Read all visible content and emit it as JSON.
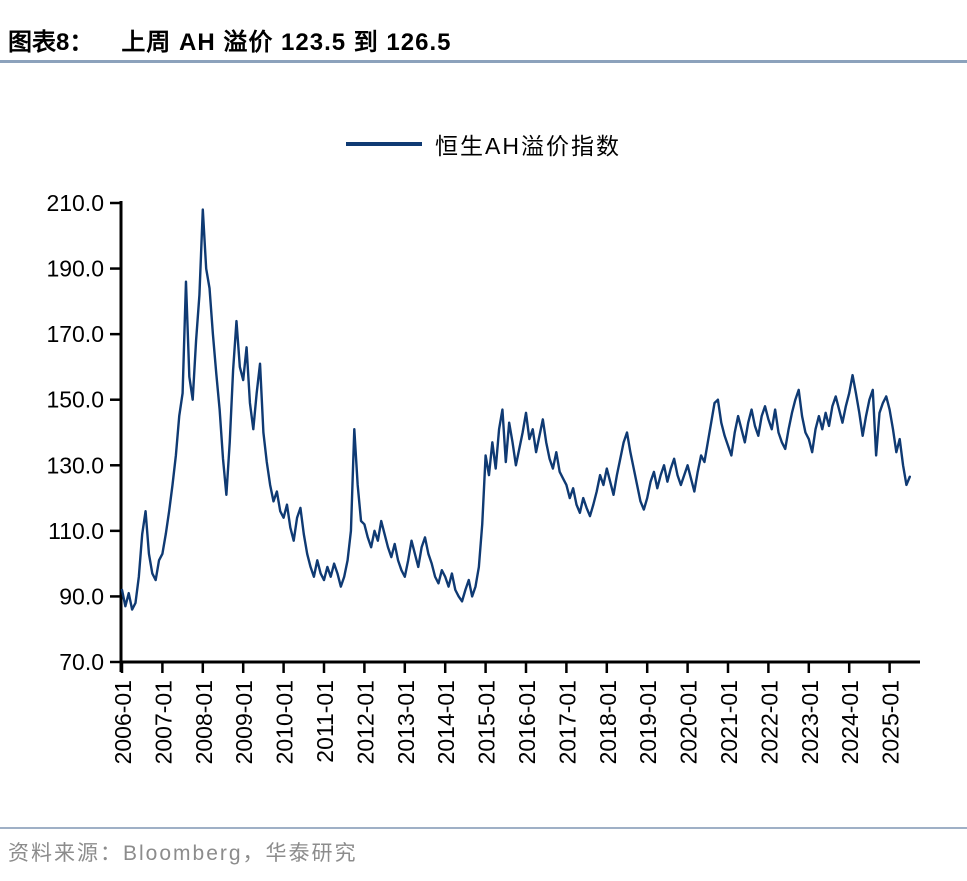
{
  "header": {
    "chart_label": "图表8：",
    "title": "上周 AH 溢价 123.5 到 126.5"
  },
  "legend": {
    "label": "恒生AH溢价指数"
  },
  "footer": {
    "source": "资料来源：Bloomberg，华泰研究"
  },
  "colors": {
    "line": "#0F3A73",
    "title_divider": "#8CA2BC",
    "footer_divider": "#9FB0C6",
    "source_text": "#8C8C8C",
    "axis": "#000000",
    "title_text": "#000000"
  },
  "chart_data": {
    "type": "line",
    "title": "上周 AH 溢价 123.5 到 126.5",
    "xlabel": "",
    "ylabel": "",
    "ylim": [
      70,
      210
    ],
    "grid": false,
    "legend_position": "top-center",
    "y_ticks": [
      70,
      90,
      110,
      130,
      150,
      170,
      190,
      210
    ],
    "y_tick_labels": [
      "70.0",
      "90.0",
      "110.0",
      "130.0",
      "150.0",
      "170.0",
      "190.0",
      "210.0"
    ],
    "x_tick_labels": [
      "2006-01",
      "2007-01",
      "2008-01",
      "2009-01",
      "2010-01",
      "2011-01",
      "2012-01",
      "2013-01",
      "2014-01",
      "2015-01",
      "2016-01",
      "2017-01",
      "2018-01",
      "2019-01",
      "2020-01",
      "2021-01",
      "2022-01",
      "2023-01",
      "2024-01",
      "2025-01"
    ],
    "series": [
      {
        "name": "恒生AH溢价指数",
        "start": "2006-01",
        "frequency": "monthly",
        "values": [
          92,
          87,
          91,
          86,
          88,
          96,
          109,
          116,
          103,
          97,
          95,
          101,
          103,
          109,
          116,
          124,
          133,
          145,
          152,
          186,
          157,
          150,
          168,
          182,
          208,
          190,
          184,
          170,
          158,
          147,
          132,
          121,
          137,
          159,
          174,
          160,
          156,
          166,
          149,
          141,
          152,
          161,
          140,
          131,
          124,
          119,
          122,
          116,
          114,
          118,
          111,
          107,
          114,
          117,
          109,
          103,
          99,
          96,
          101,
          97,
          95,
          99,
          96,
          100,
          97,
          93,
          96,
          101,
          110,
          141,
          124,
          113,
          112,
          108,
          105,
          110,
          107,
          113,
          109,
          105,
          102,
          106,
          101,
          98,
          96,
          101,
          107,
          103,
          99,
          105,
          108,
          103,
          100,
          96,
          94,
          98,
          96,
          93,
          97,
          92,
          90,
          88.5,
          92,
          95,
          90,
          93,
          99,
          112,
          133,
          127,
          137,
          129,
          141,
          147,
          131,
          143,
          137,
          130,
          135,
          140,
          146,
          138,
          141,
          134,
          139,
          144,
          137,
          132,
          129,
          134,
          128,
          126,
          124,
          120,
          123,
          118,
          115.5,
          120,
          117,
          114.5,
          118,
          122,
          127,
          124,
          129,
          125,
          121,
          127,
          132,
          137,
          140,
          134,
          129,
          124,
          119,
          116.5,
          120,
          125,
          128,
          123,
          127,
          130,
          125,
          129,
          132,
          127,
          124,
          127,
          130,
          126,
          122,
          128,
          133,
          131,
          137,
          143,
          149,
          150,
          143,
          139,
          136,
          133,
          140,
          145,
          141,
          137,
          143,
          147,
          142,
          139,
          145,
          148,
          144,
          141,
          147,
          140,
          137,
          135,
          141,
          146,
          150,
          153,
          145,
          140,
          138,
          134,
          141,
          145,
          141,
          146,
          142,
          148,
          151,
          147,
          143,
          148,
          152,
          157.5,
          152,
          146,
          139,
          145,
          150,
          153,
          133,
          146,
          149,
          151,
          147,
          141,
          134,
          138,
          130,
          124,
          126.5
        ]
      }
    ]
  }
}
